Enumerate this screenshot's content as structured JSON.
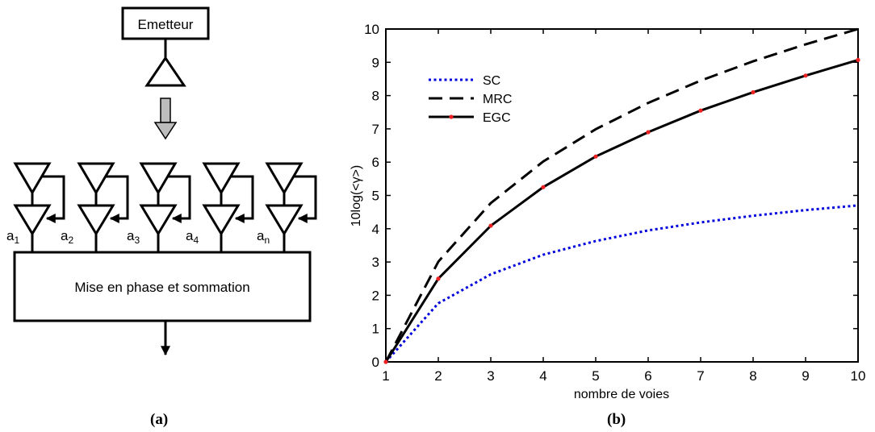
{
  "diagram": {
    "transmitter_label": "Emetteur",
    "combiner_label": "Mise en phase et sommation",
    "branch_labels": [
      {
        "base": "a",
        "sub": "1"
      },
      {
        "base": "a",
        "sub": "2"
      },
      {
        "base": "a",
        "sub": "3"
      },
      {
        "base": "a",
        "sub": "4"
      },
      {
        "base": "a",
        "sub": "n"
      }
    ],
    "caption": "(a)"
  },
  "chart_data": {
    "type": "line",
    "title": "",
    "xlabel": "nombre de voies",
    "ylabel": "10log(<γ>)",
    "xlim": [
      1,
      10
    ],
    "ylim": [
      0,
      10
    ],
    "xticks": [
      "1",
      "2",
      "3",
      "4",
      "5",
      "6",
      "7",
      "8",
      "9",
      "10"
    ],
    "yticks": [
      "0",
      "1",
      "2",
      "3",
      "4",
      "5",
      "6",
      "7",
      "8",
      "9",
      "10"
    ],
    "grid": false,
    "legend_position": "top-left",
    "x": [
      1,
      2,
      3,
      4,
      5,
      6,
      7,
      8,
      9,
      10
    ],
    "series": [
      {
        "name": "SC",
        "color": "#0000dd",
        "style": "dotted",
        "values": [
          0,
          1.76,
          2.63,
          3.22,
          3.63,
          3.95,
          4.19,
          4.39,
          4.56,
          4.7
        ]
      },
      {
        "name": "MRC",
        "color": "#000000",
        "style": "dashed",
        "values": [
          0,
          3.01,
          4.77,
          6.02,
          6.99,
          7.78,
          8.45,
          9.03,
          9.54,
          10.0
        ]
      },
      {
        "name": "EGC",
        "color": "#000000",
        "marker_color": "#ee2222",
        "style": "solid",
        "values": [
          0,
          2.5,
          4.09,
          5.25,
          6.17,
          6.9,
          7.55,
          8.1,
          8.6,
          9.07
        ]
      }
    ],
    "caption": "(b)"
  }
}
